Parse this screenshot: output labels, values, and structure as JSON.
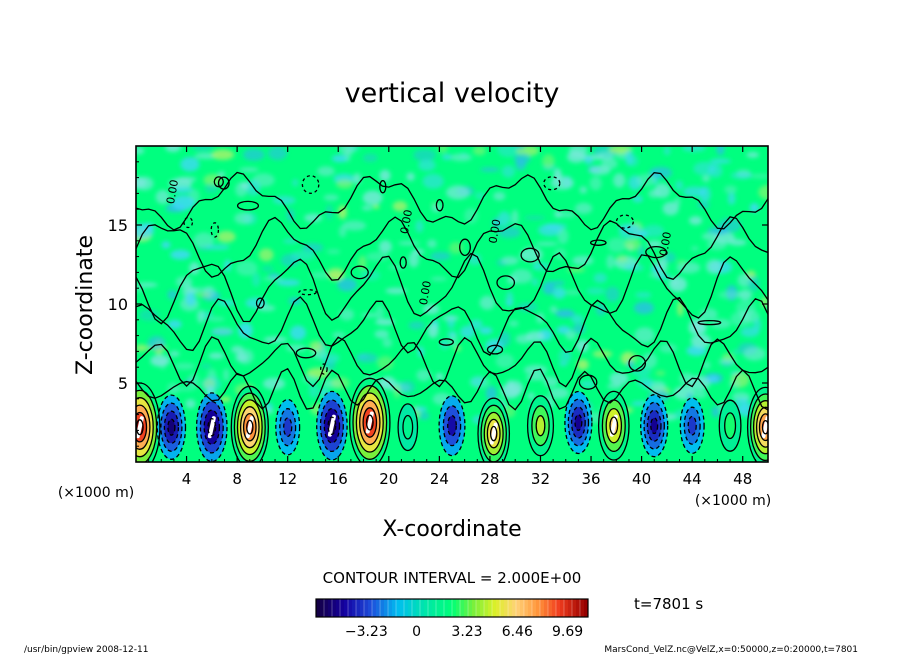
{
  "chart_data": {
    "type": "heatmap",
    "title": "vertical velocity",
    "xlabel": "X-coordinate",
    "ylabel": "Z-coordinate",
    "x_unit": "(×1000 m)",
    "y_unit": "(×1000 m)",
    "xlim": [
      0,
      50
    ],
    "ylim": [
      0,
      20
    ],
    "x_ticks": [
      "4",
      "8",
      "12",
      "16",
      "20",
      "24",
      "28",
      "32",
      "36",
      "40",
      "44",
      "48"
    ],
    "y_ticks": [
      "5",
      "10",
      "15"
    ],
    "contour_interval_label": "CONTOUR INTERVAL = 2.000E+00",
    "time_label": "t=7801 s",
    "colorbar": {
      "ticks": [
        "−3.23",
        "0",
        "3.23",
        "6.46",
        "9.69"
      ],
      "min": -6.46,
      "max": 11.0
    },
    "contour_labels": [
      "0.00",
      "0.00",
      "0.00",
      "0.00",
      "0.00"
    ],
    "cells": [
      {
        "x": 0.3,
        "z": 2.2,
        "w": 11.0
      },
      {
        "x": 2.8,
        "z": 2.2,
        "w": -5.5
      },
      {
        "x": 6.0,
        "z": 2.2,
        "w": -6.5
      },
      {
        "x": 9.0,
        "z": 2.2,
        "w": 9.5
      },
      {
        "x": 12.0,
        "z": 2.2,
        "w": -3.5
      },
      {
        "x": 15.5,
        "z": 2.3,
        "w": -6.5
      },
      {
        "x": 18.5,
        "z": 2.5,
        "w": 11.0
      },
      {
        "x": 21.5,
        "z": 2.2,
        "w": 1.5
      },
      {
        "x": 25.0,
        "z": 2.3,
        "w": -4.5
      },
      {
        "x": 28.3,
        "z": 1.8,
        "w": 7.0
      },
      {
        "x": 32.0,
        "z": 2.3,
        "w": 4.5
      },
      {
        "x": 35.0,
        "z": 2.5,
        "w": -5.0
      },
      {
        "x": 37.8,
        "z": 2.3,
        "w": 6.5
      },
      {
        "x": 41.0,
        "z": 2.3,
        "w": -5.0
      },
      {
        "x": 44.0,
        "z": 2.3,
        "w": -3.5
      },
      {
        "x": 47.0,
        "z": 2.3,
        "w": 2.5
      },
      {
        "x": 49.8,
        "z": 2.2,
        "w": 9.0
      }
    ]
  },
  "footer": {
    "left": "/usr/bin/gpview  2008-12-11",
    "right": "MarsCond_VelZ.nc@VelZ,x=0:50000,z=0:20000,t=7801"
  },
  "colors": {
    "background": "#00ff7f",
    "line": "#000000",
    "white_core": "#ffffff"
  }
}
